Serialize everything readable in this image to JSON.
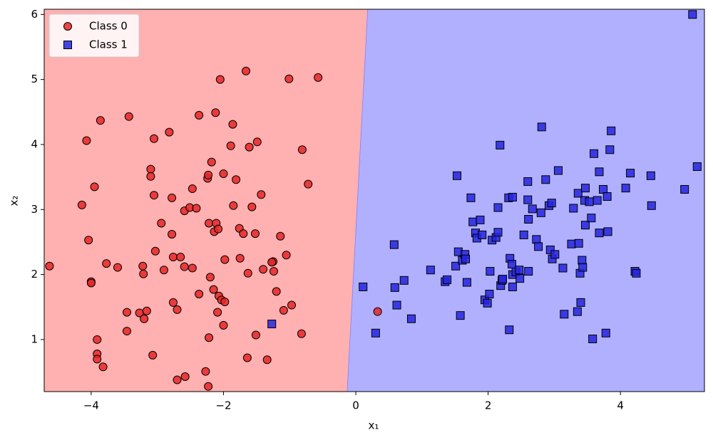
{
  "chart_data": {
    "type": "scatter",
    "xlabel": "x₁",
    "ylabel": "x₂",
    "xlim": [
      -4.71,
      5.27
    ],
    "ylim": [
      0.2,
      6.08
    ],
    "xticks": [
      {
        "value": -4,
        "label": "−4"
      },
      {
        "value": -2,
        "label": "−2"
      },
      0,
      2,
      4
    ],
    "yticks": [
      1,
      2,
      3,
      4,
      5,
      6
    ],
    "legend": "upper left",
    "decision_boundary": {
      "x": [
        0.18,
        -0.13
      ],
      "y": [
        6.08,
        0.2
      ]
    },
    "region_colors": [
      "#ffb0b0",
      "#b0b0ff"
    ],
    "series": [
      {
        "name": "Class 0",
        "color": "#e82626",
        "marker": "circle",
        "x": [
          -4.63,
          -4.14,
          -4.07,
          -3.86,
          -3.95,
          -4.04,
          -4.0,
          -4.0,
          -3.77,
          -3.6,
          -3.91,
          -3.91,
          -3.91,
          -3.82,
          -3.43,
          -3.46,
          -3.46,
          -3.27,
          -3.22,
          -3.21,
          -3.2,
          -3.16,
          -3.1,
          -3.1,
          -3.05,
          -3.05,
          -3.03,
          -3.07,
          -2.94,
          -2.9,
          -2.82,
          -2.78,
          -2.78,
          -2.76,
          -2.76,
          -2.7,
          -2.7,
          -2.65,
          -2.59,
          -2.59,
          -2.58,
          -2.51,
          -2.47,
          -2.47,
          -2.41,
          -2.37,
          -2.37,
          -2.27,
          -2.24,
          -2.23,
          -2.22,
          -2.22,
          -2.23,
          -2.18,
          -2.2,
          -2.15,
          -2.14,
          -2.12,
          -2.11,
          -2.08,
          -2.09,
          -2.07,
          -2.05,
          -2.03,
          -2.0,
          -2.0,
          -1.98,
          -1.98,
          -1.86,
          -1.89,
          -1.85,
          -1.81,
          -1.76,
          -1.7,
          -1.75,
          -1.66,
          -1.61,
          -1.63,
          -1.64,
          -1.57,
          -1.52,
          -1.51,
          -1.49,
          -1.43,
          -1.4,
          -1.34,
          -1.25,
          -1.24,
          -1.27,
          -1.2,
          -1.14,
          -1.09,
          -1.05,
          -1.01,
          -0.97,
          -0.81,
          -0.82,
          -0.72,
          -0.57,
          0.33
        ],
        "values": [
          2.13,
          3.07,
          4.06,
          4.37,
          3.35,
          2.53,
          1.89,
          1.87,
          2.17,
          2.11,
          1.0,
          0.78,
          0.7,
          0.58,
          4.43,
          1.42,
          1.13,
          1.41,
          2.13,
          2.01,
          1.32,
          1.44,
          3.62,
          3.51,
          4.09,
          3.22,
          2.36,
          0.76,
          2.79,
          2.07,
          4.19,
          3.18,
          2.62,
          2.27,
          1.57,
          1.46,
          0.38,
          2.27,
          2.98,
          2.12,
          0.43,
          3.03,
          3.32,
          2.1,
          3.02,
          4.45,
          1.7,
          0.51,
          3.48,
          3.53,
          2.79,
          1.03,
          0.28,
          3.73,
          1.96,
          1.77,
          2.66,
          4.49,
          2.79,
          2.7,
          1.42,
          1.67,
          5.0,
          1.61,
          3.55,
          1.22,
          2.23,
          1.58,
          4.31,
          3.98,
          3.06,
          3.46,
          2.71,
          2.63,
          2.25,
          5.13,
          3.96,
          2.02,
          0.72,
          3.04,
          2.63,
          1.07,
          4.04,
          3.23,
          2.08,
          0.69,
          2.2,
          2.05,
          2.19,
          1.74,
          2.59,
          1.45,
          2.3,
          5.01,
          1.53,
          3.92,
          1.09,
          3.39,
          5.03,
          1.43
        ]
      },
      {
        "name": "Class 1",
        "color": "#2626e0",
        "marker": "square",
        "x": [
          -1.27,
          0.11,
          0.3,
          0.58,
          0.59,
          0.62,
          0.73,
          0.84,
          1.13,
          1.35,
          1.38,
          1.51,
          1.53,
          1.55,
          1.58,
          1.61,
          1.65,
          1.66,
          1.68,
          1.74,
          1.77,
          1.81,
          1.83,
          1.88,
          1.91,
          1.95,
          1.99,
          2.02,
          2.03,
          2.06,
          2.12,
          2.15,
          2.15,
          2.18,
          2.19,
          2.21,
          2.22,
          2.31,
          2.32,
          2.33,
          2.36,
          2.37,
          2.37,
          2.37,
          2.42,
          2.47,
          2.48,
          2.54,
          2.6,
          2.6,
          2.61,
          2.61,
          2.67,
          2.73,
          2.76,
          2.8,
          2.81,
          2.87,
          2.92,
          2.94,
          2.96,
          2.97,
          3.01,
          3.06,
          3.13,
          3.15,
          3.26,
          3.29,
          3.35,
          3.36,
          3.37,
          3.39,
          3.4,
          3.42,
          3.43,
          3.46,
          3.47,
          3.47,
          3.53,
          3.56,
          3.58,
          3.6,
          3.65,
          3.68,
          3.68,
          3.74,
          3.78,
          3.8,
          3.81,
          3.84,
          3.86,
          4.08,
          4.15,
          4.22,
          4.24,
          4.46,
          4.47,
          4.97,
          5.09,
          5.16
        ],
        "values": [
          1.24,
          1.81,
          1.1,
          2.46,
          1.8,
          1.53,
          1.91,
          1.32,
          2.07,
          1.89,
          1.92,
          2.13,
          3.52,
          2.35,
          1.37,
          2.22,
          2.31,
          2.24,
          1.88,
          3.18,
          2.81,
          2.64,
          2.56,
          2.84,
          2.61,
          1.61,
          1.56,
          1.7,
          2.05,
          2.53,
          2.57,
          3.03,
          2.65,
          3.99,
          1.83,
          1.91,
          1.93,
          3.18,
          1.15,
          2.25,
          2.16,
          3.19,
          1.81,
          2.0,
          2.04,
          2.07,
          1.94,
          2.61,
          3.43,
          3.15,
          2.85,
          2.05,
          3.01,
          2.54,
          2.43,
          2.95,
          4.27,
          3.46,
          3.06,
          2.38,
          3.1,
          2.24,
          2.31,
          3.6,
          2.1,
          1.39,
          2.47,
          3.02,
          1.43,
          3.25,
          2.48,
          2.02,
          1.57,
          2.22,
          2.11,
          3.14,
          3.33,
          2.76,
          3.12,
          2.87,
          1.01,
          3.86,
          3.14,
          3.58,
          2.64,
          3.31,
          1.1,
          3.2,
          2.66,
          3.92,
          4.21,
          3.33,
          3.56,
          2.05,
          2.02,
          3.52,
          3.06,
          3.31,
          6.0,
          3.66
        ]
      }
    ]
  }
}
